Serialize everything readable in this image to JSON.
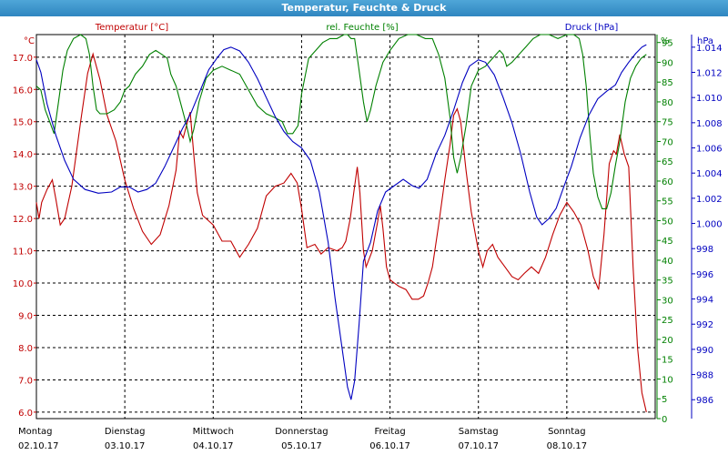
{
  "window": {
    "title": "Temperatur, Feuchte & Druck"
  },
  "chart_data": {
    "type": "line",
    "x_range": [
      0,
      7
    ],
    "grid": true,
    "x_ticks": [
      {
        "x": 0,
        "day": "Montag",
        "date": "02.10.17"
      },
      {
        "x": 1,
        "day": "Dienstag",
        "date": "03.10.17"
      },
      {
        "x": 2,
        "day": "Mittwoch",
        "date": "04.10.17"
      },
      {
        "x": 3,
        "day": "Donnerstag",
        "date": "05.10.17"
      },
      {
        "x": 4,
        "day": "Freitag",
        "date": "06.10.17"
      },
      {
        "x": 5,
        "day": "Samstag",
        "date": "07.10.17"
      },
      {
        "x": 6,
        "day": "Sonntag",
        "date": "08.10.17"
      }
    ],
    "axes": {
      "temperature": {
        "label": "Temperatur [°C]",
        "unit": "°C",
        "color": "#c00000",
        "range": [
          5.8,
          17.7
        ],
        "ticks": [
          "6.0",
          "7.0",
          "8.0",
          "9.0",
          "10.0",
          "11.0",
          "12.0",
          "13.0",
          "14.0",
          "15.0",
          "16.0",
          "17.0"
        ]
      },
      "humidity": {
        "label": "rel. Feuchte [%]",
        "unit": "%",
        "color": "#008000",
        "range": [
          0,
          97
        ],
        "ticks": [
          "0",
          "5",
          "10",
          "15",
          "20",
          "25",
          "30",
          "35",
          "40",
          "45",
          "50",
          "55",
          "60",
          "65",
          "70",
          "75",
          "80",
          "85",
          "90",
          "95"
        ]
      },
      "pressure": {
        "label": "Druck [hPa]",
        "unit": "hPa",
        "color": "#0000c0",
        "range": [
          984.5,
          1015
        ],
        "ticks": [
          "986",
          "988",
          "990",
          "992",
          "994",
          "996",
          "998",
          "1.000",
          "1.002",
          "1.004",
          "1.006",
          "1.008",
          "1.010",
          "1.012",
          "1.014"
        ]
      }
    },
    "series": [
      {
        "name": "Temperatur [°C]",
        "axis": "temperature",
        "color": "#c00000",
        "points": [
          [
            0.0,
            12.5
          ],
          [
            0.03,
            12.0
          ],
          [
            0.06,
            12.5
          ],
          [
            0.12,
            12.9
          ],
          [
            0.18,
            13.2
          ],
          [
            0.22,
            12.6
          ],
          [
            0.27,
            11.8
          ],
          [
            0.32,
            12.0
          ],
          [
            0.4,
            13.0
          ],
          [
            0.5,
            15.0
          ],
          [
            0.58,
            16.5
          ],
          [
            0.64,
            17.1
          ],
          [
            0.72,
            16.3
          ],
          [
            0.8,
            15.2
          ],
          [
            0.9,
            14.4
          ],
          [
            1.0,
            13.2
          ],
          [
            1.1,
            12.3
          ],
          [
            1.2,
            11.6
          ],
          [
            1.3,
            11.2
          ],
          [
            1.4,
            11.5
          ],
          [
            1.5,
            12.4
          ],
          [
            1.58,
            13.5
          ],
          [
            1.62,
            14.7
          ],
          [
            1.66,
            14.5
          ],
          [
            1.7,
            14.9
          ],
          [
            1.74,
            15.3
          ],
          [
            1.78,
            14.0
          ],
          [
            1.82,
            12.8
          ],
          [
            1.88,
            12.1
          ],
          [
            2.0,
            11.8
          ],
          [
            2.1,
            11.3
          ],
          [
            2.2,
            11.3
          ],
          [
            2.3,
            10.8
          ],
          [
            2.4,
            11.2
          ],
          [
            2.5,
            11.7
          ],
          [
            2.6,
            12.7
          ],
          [
            2.7,
            13.0
          ],
          [
            2.8,
            13.1
          ],
          [
            2.88,
            13.4
          ],
          [
            2.95,
            13.1
          ],
          [
            3.0,
            12.3
          ],
          [
            3.06,
            11.1
          ],
          [
            3.15,
            11.2
          ],
          [
            3.22,
            10.9
          ],
          [
            3.3,
            11.1
          ],
          [
            3.4,
            11.0
          ],
          [
            3.46,
            11.1
          ],
          [
            3.5,
            11.3
          ],
          [
            3.55,
            12.0
          ],
          [
            3.6,
            13.0
          ],
          [
            3.63,
            13.6
          ],
          [
            3.66,
            12.8
          ],
          [
            3.7,
            11.0
          ],
          [
            3.73,
            10.5
          ],
          [
            3.8,
            11.0
          ],
          [
            3.86,
            11.9
          ],
          [
            3.89,
            12.4
          ],
          [
            3.92,
            11.7
          ],
          [
            3.96,
            10.5
          ],
          [
            4.0,
            10.1
          ],
          [
            4.05,
            10.0
          ],
          [
            4.1,
            9.9
          ],
          [
            4.18,
            9.8
          ],
          [
            4.25,
            9.5
          ],
          [
            4.32,
            9.5
          ],
          [
            4.38,
            9.6
          ],
          [
            4.43,
            10.0
          ],
          [
            4.48,
            10.5
          ],
          [
            4.55,
            11.8
          ],
          [
            4.62,
            13.2
          ],
          [
            4.68,
            14.3
          ],
          [
            4.72,
            15.2
          ],
          [
            4.76,
            15.4
          ],
          [
            4.8,
            15.0
          ],
          [
            4.86,
            13.5
          ],
          [
            4.92,
            12.2
          ],
          [
            5.0,
            11.0
          ],
          [
            5.05,
            10.5
          ],
          [
            5.1,
            11.0
          ],
          [
            5.16,
            11.2
          ],
          [
            5.22,
            10.8
          ],
          [
            5.3,
            10.5
          ],
          [
            5.38,
            10.2
          ],
          [
            5.45,
            10.1
          ],
          [
            5.52,
            10.3
          ],
          [
            5.6,
            10.5
          ],
          [
            5.68,
            10.3
          ],
          [
            5.76,
            10.8
          ],
          [
            5.84,
            11.5
          ],
          [
            5.92,
            12.1
          ],
          [
            6.0,
            12.5
          ],
          [
            6.08,
            12.2
          ],
          [
            6.16,
            11.8
          ],
          [
            6.24,
            11.0
          ],
          [
            6.3,
            10.2
          ],
          [
            6.36,
            9.8
          ],
          [
            6.42,
            11.5
          ],
          [
            6.48,
            13.7
          ],
          [
            6.53,
            14.1
          ],
          [
            6.56,
            14.0
          ],
          [
            6.6,
            14.6
          ],
          [
            6.65,
            14.0
          ],
          [
            6.7,
            13.6
          ],
          [
            6.75,
            10.5
          ],
          [
            6.8,
            8.0
          ],
          [
            6.85,
            6.6
          ],
          [
            6.9,
            6.0
          ]
        ]
      },
      {
        "name": "rel. Feuchte [%]",
        "axis": "humidity",
        "color": "#008000",
        "points": [
          [
            0.0,
            84
          ],
          [
            0.05,
            83
          ],
          [
            0.1,
            78
          ],
          [
            0.15,
            75
          ],
          [
            0.2,
            72
          ],
          [
            0.25,
            80
          ],
          [
            0.3,
            88
          ],
          [
            0.35,
            93
          ],
          [
            0.42,
            96
          ],
          [
            0.5,
            97
          ],
          [
            0.56,
            96
          ],
          [
            0.6,
            92
          ],
          [
            0.64,
            84
          ],
          [
            0.68,
            78
          ],
          [
            0.72,
            77
          ],
          [
            0.8,
            77
          ],
          [
            0.88,
            78
          ],
          [
            0.95,
            80
          ],
          [
            1.0,
            83
          ],
          [
            1.05,
            84
          ],
          [
            1.12,
            87
          ],
          [
            1.2,
            89
          ],
          [
            1.28,
            92
          ],
          [
            1.35,
            93
          ],
          [
            1.42,
            92
          ],
          [
            1.48,
            91
          ],
          [
            1.52,
            87
          ],
          [
            1.58,
            84
          ],
          [
            1.64,
            79
          ],
          [
            1.7,
            74
          ],
          [
            1.74,
            70
          ],
          [
            1.78,
            73
          ],
          [
            1.84,
            80
          ],
          [
            1.92,
            86
          ],
          [
            2.0,
            88
          ],
          [
            2.1,
            89
          ],
          [
            2.2,
            88
          ],
          [
            2.3,
            87
          ],
          [
            2.4,
            83
          ],
          [
            2.5,
            79
          ],
          [
            2.6,
            77
          ],
          [
            2.7,
            76
          ],
          [
            2.78,
            75
          ],
          [
            2.84,
            72
          ],
          [
            2.9,
            72
          ],
          [
            2.96,
            74
          ],
          [
            3.0,
            82
          ],
          [
            3.08,
            91
          ],
          [
            3.16,
            93
          ],
          [
            3.24,
            95
          ],
          [
            3.32,
            96
          ],
          [
            3.4,
            96
          ],
          [
            3.48,
            97
          ],
          [
            3.52,
            97
          ],
          [
            3.56,
            96
          ],
          [
            3.6,
            96
          ],
          [
            3.65,
            88
          ],
          [
            3.7,
            80
          ],
          [
            3.74,
            75
          ],
          [
            3.78,
            78
          ],
          [
            3.84,
            84
          ],
          [
            3.92,
            90
          ],
          [
            4.0,
            93
          ],
          [
            4.1,
            96
          ],
          [
            4.2,
            97
          ],
          [
            4.3,
            97
          ],
          [
            4.4,
            96
          ],
          [
            4.48,
            96
          ],
          [
            4.55,
            92
          ],
          [
            4.62,
            86
          ],
          [
            4.68,
            76
          ],
          [
            4.72,
            66
          ],
          [
            4.76,
            62
          ],
          [
            4.8,
            66
          ],
          [
            4.86,
            74
          ],
          [
            4.92,
            84
          ],
          [
            5.0,
            88
          ],
          [
            5.08,
            89
          ],
          [
            5.16,
            91
          ],
          [
            5.24,
            93
          ],
          [
            5.28,
            92
          ],
          [
            5.32,
            89
          ],
          [
            5.38,
            90
          ],
          [
            5.46,
            92
          ],
          [
            5.54,
            94
          ],
          [
            5.62,
            96
          ],
          [
            5.7,
            97
          ],
          [
            5.8,
            97
          ],
          [
            5.9,
            96
          ],
          [
            6.0,
            97
          ],
          [
            6.08,
            97
          ],
          [
            6.14,
            96
          ],
          [
            6.18,
            92
          ],
          [
            6.22,
            84
          ],
          [
            6.26,
            72
          ],
          [
            6.3,
            62
          ],
          [
            6.35,
            56
          ],
          [
            6.4,
            53
          ],
          [
            6.45,
            53
          ],
          [
            6.5,
            57
          ],
          [
            6.55,
            64
          ],
          [
            6.6,
            70
          ],
          [
            6.66,
            80
          ],
          [
            6.72,
            86
          ],
          [
            6.78,
            89
          ],
          [
            6.84,
            91
          ],
          [
            6.9,
            92
          ]
        ]
      },
      {
        "name": "Druck [hPa]",
        "axis": "pressure",
        "color": "#0000c0",
        "points": [
          [
            0.0,
            1013.0
          ],
          [
            0.05,
            1012.0
          ],
          [
            0.12,
            1009.5
          ],
          [
            0.22,
            1007.0
          ],
          [
            0.32,
            1005.0
          ],
          [
            0.42,
            1003.5
          ],
          [
            0.55,
            1002.7
          ],
          [
            0.7,
            1002.4
          ],
          [
            0.85,
            1002.5
          ],
          [
            0.95,
            1002.9
          ],
          [
            1.05,
            1002.9
          ],
          [
            1.15,
            1002.5
          ],
          [
            1.25,
            1002.7
          ],
          [
            1.35,
            1003.2
          ],
          [
            1.45,
            1004.5
          ],
          [
            1.55,
            1006.0
          ],
          [
            1.65,
            1007.5
          ],
          [
            1.75,
            1008.8
          ],
          [
            1.85,
            1010.5
          ],
          [
            1.95,
            1012.2
          ],
          [
            2.05,
            1013.2
          ],
          [
            2.12,
            1013.8
          ],
          [
            2.2,
            1014.0
          ],
          [
            2.3,
            1013.7
          ],
          [
            2.4,
            1012.8
          ],
          [
            2.5,
            1011.5
          ],
          [
            2.6,
            1010.0
          ],
          [
            2.7,
            1008.5
          ],
          [
            2.8,
            1007.3
          ],
          [
            2.9,
            1006.5
          ],
          [
            3.0,
            1006.0
          ],
          [
            3.1,
            1005.0
          ],
          [
            3.2,
            1002.5
          ],
          [
            3.3,
            998.5
          ],
          [
            3.38,
            994.0
          ],
          [
            3.46,
            990.0
          ],
          [
            3.52,
            987.0
          ],
          [
            3.56,
            986.0
          ],
          [
            3.6,
            987.5
          ],
          [
            3.65,
            992.0
          ],
          [
            3.7,
            997.0
          ],
          [
            3.78,
            998.5
          ],
          [
            3.86,
            1001.0
          ],
          [
            3.95,
            1002.5
          ],
          [
            4.05,
            1003.0
          ],
          [
            4.15,
            1003.5
          ],
          [
            4.25,
            1003.0
          ],
          [
            4.33,
            1002.8
          ],
          [
            4.42,
            1003.5
          ],
          [
            4.52,
            1005.5
          ],
          [
            4.62,
            1007.0
          ],
          [
            4.72,
            1009.0
          ],
          [
            4.82,
            1011.2
          ],
          [
            4.9,
            1012.5
          ],
          [
            5.0,
            1013.0
          ],
          [
            5.08,
            1012.8
          ],
          [
            5.18,
            1011.8
          ],
          [
            5.28,
            1010.0
          ],
          [
            5.38,
            1008.0
          ],
          [
            5.48,
            1005.5
          ],
          [
            5.58,
            1002.5
          ],
          [
            5.66,
            1000.5
          ],
          [
            5.72,
            999.9
          ],
          [
            5.8,
            1000.4
          ],
          [
            5.88,
            1001.2
          ],
          [
            5.96,
            1002.8
          ],
          [
            6.05,
            1004.5
          ],
          [
            6.15,
            1006.8
          ],
          [
            6.25,
            1008.6
          ],
          [
            6.35,
            1009.9
          ],
          [
            6.45,
            1010.5
          ],
          [
            6.55,
            1011.0
          ],
          [
            6.62,
            1012.0
          ],
          [
            6.7,
            1012.8
          ],
          [
            6.78,
            1013.5
          ],
          [
            6.85,
            1014.0
          ],
          [
            6.9,
            1014.2
          ]
        ]
      }
    ]
  }
}
